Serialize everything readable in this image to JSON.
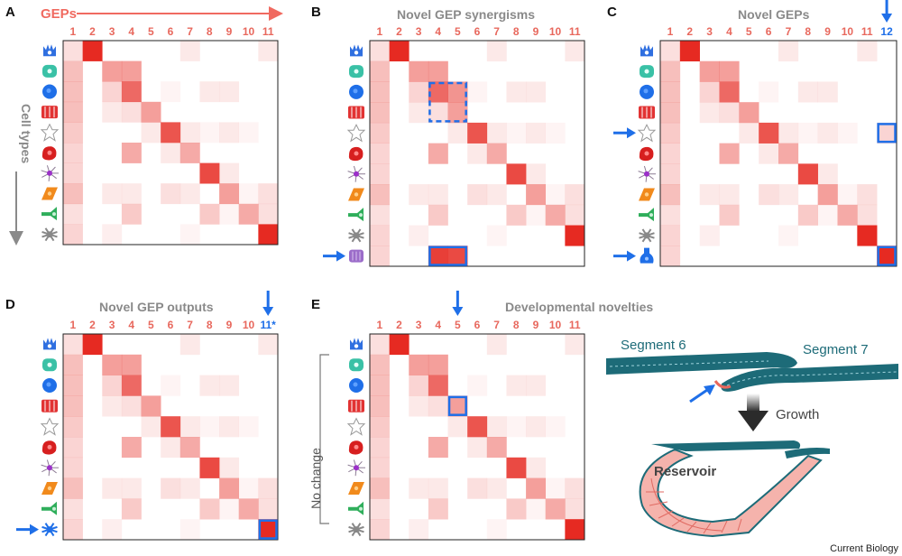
{
  "figure": {
    "credit": "Current Biology",
    "colors": {
      "red": "#e62a22",
      "blue": "#1f6fe8",
      "gray": "#8a8a8a",
      "teal": "#1d6b78"
    }
  },
  "panels": {
    "A": {
      "label": "A",
      "header": "GEPs",
      "side_label": "Cell types",
      "columns": [
        "1",
        "2",
        "3",
        "4",
        "5",
        "6",
        "7",
        "8",
        "9",
        "10",
        "11"
      ]
    },
    "B": {
      "label": "B",
      "title": "Novel GEP synergisms",
      "columns": [
        "1",
        "2",
        "3",
        "4",
        "5",
        "6",
        "7",
        "8",
        "9",
        "10",
        "11"
      ]
    },
    "C": {
      "label": "C",
      "title": "Novel GEPs",
      "columns": [
        "1",
        "2",
        "3",
        "4",
        "5",
        "6",
        "7",
        "8",
        "9",
        "10",
        "11",
        "12"
      ]
    },
    "D": {
      "label": "D",
      "title": "Novel GEP outputs",
      "columns": [
        "1",
        "2",
        "3",
        "4",
        "5",
        "6",
        "7",
        "8",
        "9",
        "10",
        "11*"
      ]
    },
    "E": {
      "label": "E",
      "title": "Developmental novelties",
      "side_label": "No change",
      "columns": [
        "1",
        "2",
        "3",
        "4",
        "5",
        "6",
        "7",
        "8",
        "9",
        "10",
        "11"
      ],
      "segment_left": "Segment 6",
      "segment_right": "Segment 7",
      "growth_label": "Growth",
      "reservoir_label": "Reservoir"
    }
  },
  "cell_icons": [
    "crown-cell-icon",
    "round-cell-icon",
    "blue-cell-icon",
    "columnar-cells-icon",
    "star-cell-icon",
    "red-cell-icon",
    "neuron-icon",
    "orange-cell-icon",
    "flask-cell-icon",
    "branching-cell-icon"
  ]
}
